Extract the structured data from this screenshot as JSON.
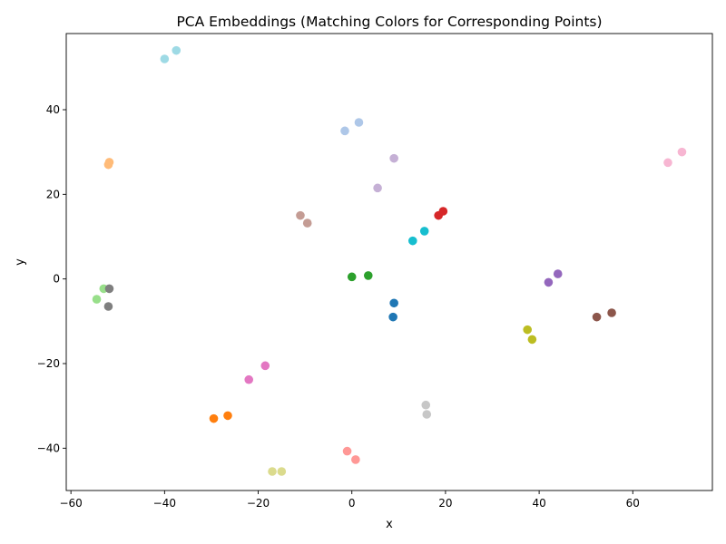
{
  "chart_data": {
    "type": "scatter",
    "title": "PCA Embeddings (Matching Colors for Corresponding Points)",
    "xlabel": "x",
    "ylabel": "y",
    "xlim": [
      -61,
      77
    ],
    "ylim": [
      -50,
      58
    ],
    "xticks": [
      -60,
      -40,
      -20,
      0,
      20,
      40,
      60
    ],
    "yticks": [
      -40,
      -20,
      0,
      20,
      40
    ],
    "grid": false,
    "legend": "none",
    "points": [
      {
        "x": -40.0,
        "y": 52.0,
        "color": "#9edae5"
      },
      {
        "x": -37.5,
        "y": 54.0,
        "color": "#9edae5"
      },
      {
        "x": -1.5,
        "y": 35.0,
        "color": "#aec7e8"
      },
      {
        "x": 1.5,
        "y": 37.0,
        "color": "#aec7e8"
      },
      {
        "x": 9.0,
        "y": 28.5,
        "color": "#c5b0d5"
      },
      {
        "x": 5.5,
        "y": 21.5,
        "color": "#c5b0d5"
      },
      {
        "x": 67.5,
        "y": 27.5,
        "color": "#f7b6d2"
      },
      {
        "x": 70.5,
        "y": 30.0,
        "color": "#f7b6d2"
      },
      {
        "x": -51.8,
        "y": 27.6,
        "color": "#ffbb78"
      },
      {
        "x": -52.0,
        "y": 27.0,
        "color": "#ffbb78"
      },
      {
        "x": -11.0,
        "y": 15.0,
        "color": "#c49c94"
      },
      {
        "x": -9.5,
        "y": 13.2,
        "color": "#c49c94"
      },
      {
        "x": 18.5,
        "y": 15.0,
        "color": "#d62728"
      },
      {
        "x": 19.5,
        "y": 16.0,
        "color": "#d62728"
      },
      {
        "x": 13.0,
        "y": 9.0,
        "color": "#17becf"
      },
      {
        "x": 15.5,
        "y": 11.3,
        "color": "#17becf"
      },
      {
        "x": 0.0,
        "y": 0.5,
        "color": "#2ca02c"
      },
      {
        "x": 3.5,
        "y": 0.8,
        "color": "#2ca02c"
      },
      {
        "x": 9.0,
        "y": -5.7,
        "color": "#1f77b4"
      },
      {
        "x": 8.8,
        "y": -9.0,
        "color": "#1f77b4"
      },
      {
        "x": 44.0,
        "y": 1.2,
        "color": "#9467bd"
      },
      {
        "x": 42.0,
        "y": -0.8,
        "color": "#9467bd"
      },
      {
        "x": -53.0,
        "y": -2.3,
        "color": "#98df8a"
      },
      {
        "x": -54.5,
        "y": -4.8,
        "color": "#98df8a"
      },
      {
        "x": -51.8,
        "y": -2.3,
        "color": "#7f7f7f"
      },
      {
        "x": -52.0,
        "y": -6.5,
        "color": "#7f7f7f"
      },
      {
        "x": 52.3,
        "y": -9.0,
        "color": "#8c564b"
      },
      {
        "x": 55.5,
        "y": -8.0,
        "color": "#8c564b"
      },
      {
        "x": 37.5,
        "y": -12.0,
        "color": "#bcbd22"
      },
      {
        "x": 38.5,
        "y": -14.3,
        "color": "#bcbd22"
      },
      {
        "x": -18.5,
        "y": -20.5,
        "color": "#e377c2"
      },
      {
        "x": -22.0,
        "y": -23.8,
        "color": "#e377c2"
      },
      {
        "x": -29.5,
        "y": -33.0,
        "color": "#ff7f0e"
      },
      {
        "x": -26.5,
        "y": -32.3,
        "color": "#ff7f0e"
      },
      {
        "x": 15.8,
        "y": -29.8,
        "color": "#c7c7c7"
      },
      {
        "x": 16.0,
        "y": -32.0,
        "color": "#c7c7c7"
      },
      {
        "x": -1.0,
        "y": -40.7,
        "color": "#ff9896"
      },
      {
        "x": 0.8,
        "y": -42.7,
        "color": "#ff9896"
      },
      {
        "x": -17.0,
        "y": -45.5,
        "color": "#dbdb8d"
      },
      {
        "x": -15.0,
        "y": -45.5,
        "color": "#dbdb8d"
      }
    ]
  }
}
